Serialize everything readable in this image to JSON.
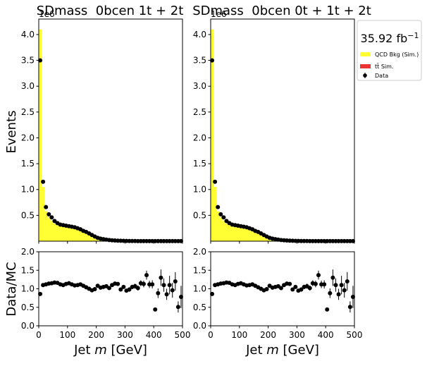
{
  "figure": {
    "ylabel_top": "Events",
    "ylabel_bottom": "Data/MC",
    "xlabel": "Jet m [GeV]",
    "lumi": "35.92 fb",
    "lumi_exp": "−1",
    "legend": [
      {
        "label": "QCD Bkg (Sim.)",
        "color": "#ffff33",
        "kind": "bar"
      },
      {
        "label": "tt̄ Sim.",
        "color": "#ee3333",
        "kind": "bar"
      },
      {
        "label": "Data",
        "color": "#000000",
        "kind": "errorbar"
      }
    ]
  },
  "chart_data": [
    {
      "type": "bar",
      "title": "SDmass  0bcen 1t + 2t",
      "offset_text": "1e6",
      "xlim": [
        0,
        500
      ],
      "ylim_top": [
        0,
        4.3
      ],
      "ylim_ratio": [
        0,
        2.0
      ],
      "x_ticks": [
        "0",
        "100",
        "200",
        "300",
        "400",
        "500"
      ],
      "y_ticks_top": [
        "0.5",
        "1.0",
        "1.5",
        "2.0",
        "2.5",
        "3.0",
        "3.5",
        "4.0"
      ],
      "y_ticks_ratio": [
        "0.0",
        "0.5",
        "1.0",
        "1.5",
        "2.0"
      ],
      "bin_width": 10,
      "bin_centers": [
        5,
        15,
        25,
        35,
        45,
        55,
        65,
        75,
        85,
        95,
        105,
        115,
        125,
        135,
        145,
        155,
        165,
        175,
        185,
        195,
        205,
        215,
        225,
        235,
        245,
        255,
        265,
        275,
        285,
        295,
        305,
        315,
        325,
        335,
        345,
        355,
        365,
        375,
        385,
        395,
        405,
        415,
        425,
        435,
        445,
        455,
        465,
        475,
        485,
        495
      ],
      "series": [
        {
          "name": "QCD Bkg (Sim.)",
          "values": [
            4.1,
            1.05,
            0.58,
            0.46,
            0.4,
            0.34,
            0.31,
            0.29,
            0.28,
            0.27,
            0.26,
            0.25,
            0.24,
            0.22,
            0.2,
            0.18,
            0.16,
            0.13,
            0.1,
            0.08,
            0.055,
            0.04,
            0.03,
            0.022,
            0.016,
            0.012,
            0.009,
            0.007,
            0.006,
            0.005,
            0.004,
            0.003,
            0.003,
            0.002,
            0.002,
            0.002,
            0.001,
            0.001,
            0.001,
            0.001,
            0.001,
            0.001,
            0.001,
            0.001,
            0.001,
            0.001,
            0.001,
            0.001,
            0.001,
            0.001
          ]
        },
        {
          "name": "Data",
          "values": [
            3.5,
            1.15,
            0.66,
            0.52,
            0.46,
            0.39,
            0.35,
            0.32,
            0.31,
            0.3,
            0.29,
            0.28,
            0.27,
            0.25,
            0.23,
            0.2,
            0.18,
            0.15,
            0.12,
            0.09,
            0.065,
            0.05,
            0.04,
            0.03,
            0.022,
            0.017,
            0.013,
            0.01,
            0.008,
            0.006,
            0.005,
            0.004,
            0.003,
            0.003,
            0.002,
            0.002,
            0.002,
            0.002,
            0.001,
            0.001,
            0.001,
            0.001,
            0.001,
            0.001,
            0.001,
            0.001,
            0.001,
            0.001,
            0.001,
            0.001
          ]
        },
        {
          "name": "Data/MC",
          "values": [
            0.86,
            1.1,
            1.12,
            1.14,
            1.15,
            1.17,
            1.16,
            1.12,
            1.1,
            1.13,
            1.15,
            1.12,
            1.09,
            1.1,
            1.12,
            1.08,
            1.04,
            1.0,
            0.96,
            0.99,
            1.08,
            1.03,
            1.05,
            1.07,
            1.02,
            1.1,
            1.14,
            1.13,
            0.98,
            1.05,
            0.95,
            0.98,
            1.05,
            1.07,
            1.02,
            1.15,
            1.13,
            1.37,
            1.12,
            1.12,
            0.44,
            0.88,
            1.3,
            1.1,
            0.85,
            1.1,
            0.96,
            1.2,
            0.51,
            0.78
          ],
          "errors": [
            0.01,
            0.01,
            0.01,
            0.01,
            0.01,
            0.01,
            0.01,
            0.01,
            0.01,
            0.01,
            0.01,
            0.01,
            0.01,
            0.01,
            0.01,
            0.01,
            0.01,
            0.01,
            0.01,
            0.01,
            0.02,
            0.02,
            0.02,
            0.03,
            0.03,
            0.03,
            0.04,
            0.04,
            0.05,
            0.05,
            0.05,
            0.06,
            0.06,
            0.07,
            0.07,
            0.08,
            0.09,
            0.12,
            0.1,
            0.11,
            0.05,
            0.13,
            0.22,
            0.18,
            0.15,
            0.25,
            0.2,
            0.25,
            0.15,
            0.3
          ]
        }
      ]
    },
    {
      "type": "bar",
      "title": "SDmass  0bcen 0t + 1t + 2t",
      "offset_text": "1e6",
      "xlim": [
        0,
        500
      ],
      "ylim_top": [
        0,
        4.3
      ],
      "ylim_ratio": [
        0,
        2.0
      ],
      "x_ticks": [
        "0",
        "100",
        "200",
        "300",
        "400",
        "500"
      ],
      "y_ticks_top": [
        "0.5",
        "1.0",
        "1.5",
        "2.0",
        "2.5",
        "3.0",
        "3.5",
        "4.0"
      ],
      "y_ticks_ratio": [
        "0.0",
        "0.5",
        "1.0",
        "1.5",
        "2.0"
      ],
      "bin_width": 10,
      "bin_centers": [
        5,
        15,
        25,
        35,
        45,
        55,
        65,
        75,
        85,
        95,
        105,
        115,
        125,
        135,
        145,
        155,
        165,
        175,
        185,
        195,
        205,
        215,
        225,
        235,
        245,
        255,
        265,
        275,
        285,
        295,
        305,
        315,
        325,
        335,
        345,
        355,
        365,
        375,
        385,
        395,
        405,
        415,
        425,
        435,
        445,
        455,
        465,
        475,
        485,
        495
      ],
      "series": [
        {
          "name": "QCD Bkg (Sim.)",
          "values": [
            4.1,
            1.05,
            0.58,
            0.46,
            0.4,
            0.34,
            0.31,
            0.29,
            0.28,
            0.27,
            0.26,
            0.25,
            0.24,
            0.22,
            0.2,
            0.18,
            0.16,
            0.13,
            0.1,
            0.08,
            0.055,
            0.04,
            0.03,
            0.022,
            0.016,
            0.012,
            0.009,
            0.007,
            0.006,
            0.005,
            0.004,
            0.003,
            0.003,
            0.002,
            0.002,
            0.002,
            0.001,
            0.001,
            0.001,
            0.001,
            0.001,
            0.001,
            0.001,
            0.001,
            0.001,
            0.001,
            0.001,
            0.001,
            0.001,
            0.001
          ]
        },
        {
          "name": "Data",
          "values": [
            3.5,
            1.15,
            0.66,
            0.52,
            0.46,
            0.39,
            0.35,
            0.32,
            0.31,
            0.3,
            0.29,
            0.28,
            0.27,
            0.25,
            0.23,
            0.2,
            0.18,
            0.15,
            0.12,
            0.09,
            0.065,
            0.05,
            0.04,
            0.03,
            0.022,
            0.017,
            0.013,
            0.01,
            0.008,
            0.006,
            0.005,
            0.004,
            0.003,
            0.003,
            0.002,
            0.002,
            0.002,
            0.002,
            0.001,
            0.001,
            0.001,
            0.001,
            0.001,
            0.001,
            0.001,
            0.001,
            0.001,
            0.001,
            0.001,
            0.001
          ]
        },
        {
          "name": "Data/MC",
          "values": [
            0.86,
            1.1,
            1.12,
            1.14,
            1.15,
            1.17,
            1.16,
            1.12,
            1.1,
            1.13,
            1.15,
            1.12,
            1.09,
            1.1,
            1.12,
            1.08,
            1.04,
            1.0,
            0.96,
            0.99,
            1.08,
            1.03,
            1.05,
            1.07,
            1.02,
            1.1,
            1.14,
            1.13,
            0.98,
            1.05,
            0.95,
            0.98,
            1.05,
            1.07,
            1.02,
            1.15,
            1.13,
            1.37,
            1.12,
            1.12,
            0.44,
            0.88,
            1.3,
            1.1,
            0.85,
            1.1,
            0.96,
            1.2,
            0.51,
            0.78
          ],
          "errors": [
            0.01,
            0.01,
            0.01,
            0.01,
            0.01,
            0.01,
            0.01,
            0.01,
            0.01,
            0.01,
            0.01,
            0.01,
            0.01,
            0.01,
            0.01,
            0.01,
            0.01,
            0.01,
            0.01,
            0.01,
            0.02,
            0.02,
            0.02,
            0.03,
            0.03,
            0.03,
            0.04,
            0.04,
            0.05,
            0.05,
            0.05,
            0.06,
            0.06,
            0.07,
            0.07,
            0.08,
            0.09,
            0.12,
            0.1,
            0.11,
            0.05,
            0.13,
            0.22,
            0.18,
            0.15,
            0.25,
            0.2,
            0.25,
            0.15,
            0.3
          ]
        }
      ]
    }
  ]
}
